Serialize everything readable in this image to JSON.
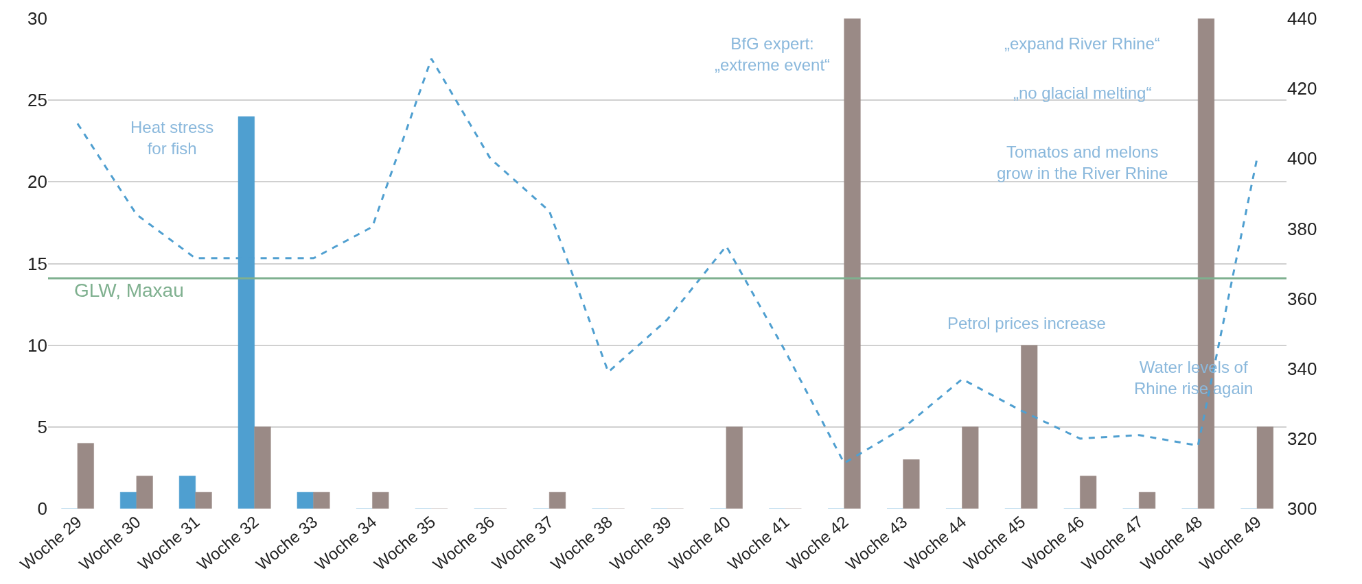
{
  "chart_data": {
    "type": "bar",
    "categories": [
      "Woche 29",
      "Woche 30",
      "Woche 31",
      "Woche 32",
      "Woche 33",
      "Woche 34",
      "Woche 35",
      "Woche 36",
      "Woche 37",
      "Woche 38",
      "Woche 39",
      "Woche 40",
      "Woche 41",
      "Woche 42",
      "Woche 43",
      "Woche 44",
      "Woche 45",
      "Woche 46",
      "Woche 47",
      "Woche 48",
      "Woche 49"
    ],
    "series": [
      {
        "color": "#4f9fd0",
        "values": [
          0,
          1,
          2,
          24,
          1,
          0,
          0,
          0,
          0,
          0,
          0,
          0,
          0,
          0,
          0,
          0,
          0,
          0,
          0,
          0,
          0
        ]
      },
      {
        "color": "#9a8a86",
        "values": [
          4,
          2,
          1,
          5,
          1,
          1,
          0,
          0,
          1,
          0,
          0,
          5,
          0,
          30,
          3,
          5,
          10,
          2,
          1,
          30,
          5
        ]
      },
      {
        "type": "line",
        "axis": "y2",
        "color": "#4f9fd0",
        "line_style": "dashed",
        "marker": "none",
        "values": [
          410,
          384,
          371.5,
          371.5,
          371.5,
          380.5,
          428.5,
          400,
          385,
          339,
          354,
          375,
          345,
          313,
          323,
          337,
          328,
          320,
          321,
          318,
          400
        ]
      }
    ],
    "ylim": [
      0,
      30
    ],
    "yticks": [
      0,
      5,
      10,
      15,
      20,
      25,
      30
    ],
    "y2lim": [
      300,
      440
    ],
    "y2ticks": [
      300,
      320,
      340,
      360,
      380,
      400,
      420,
      440
    ],
    "grid": "y",
    "ref_lines": [
      {
        "axis": "y",
        "value": 14.1,
        "label": "GLW, Maxau",
        "color": "#7fb08f"
      }
    ],
    "annotations": [
      "Heat stress\nfor fish",
      "BfG expert:\n„extreme event“",
      "„expand River Rhine“",
      "„no glacial melting“",
      "Tomatos and melons\ngrow in the River Rhine",
      "Petrol prices increase",
      "Water levels of\nRhine rise again"
    ]
  }
}
